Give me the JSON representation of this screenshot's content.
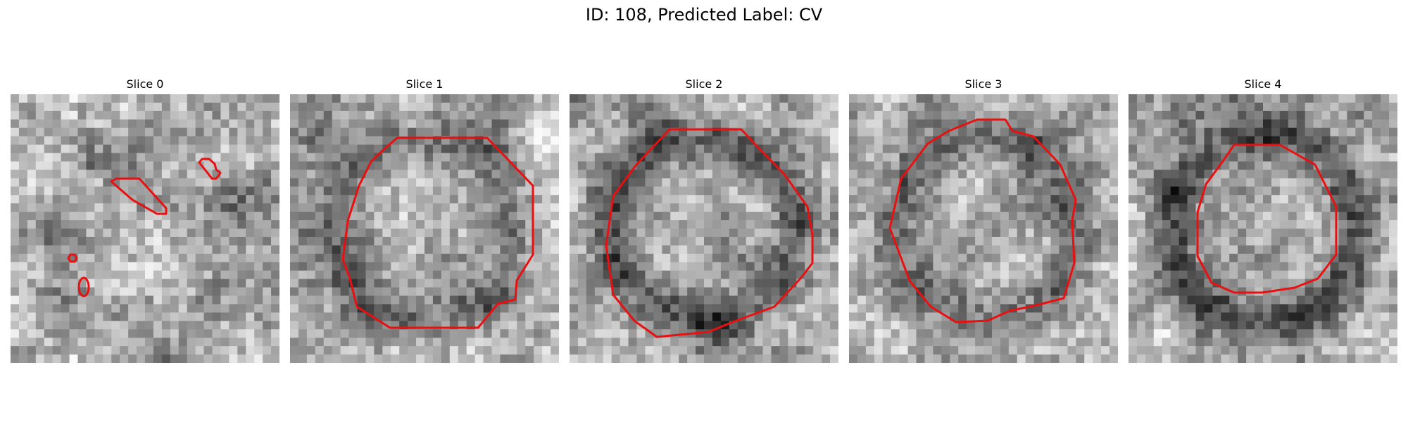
{
  "figure": {
    "title": "ID: 108, Predicted Label: CV"
  },
  "panels": [
    {
      "title": "Slice 0",
      "seed": 11,
      "ring": 0.15,
      "contour_color": "#e81010"
    },
    {
      "title": "Slice 1",
      "seed": 23,
      "ring": 0.55,
      "contour_color": "#e81010"
    },
    {
      "title": "Slice 2",
      "seed": 37,
      "ring": 0.75,
      "contour_color": "#e81010"
    },
    {
      "title": "Slice 3",
      "seed": 41,
      "ring": 0.7,
      "contour_color": "#e81010"
    },
    {
      "title": "Slice 4",
      "seed": 53,
      "ring": 0.85,
      "contour_color": "#e81010"
    }
  ]
}
